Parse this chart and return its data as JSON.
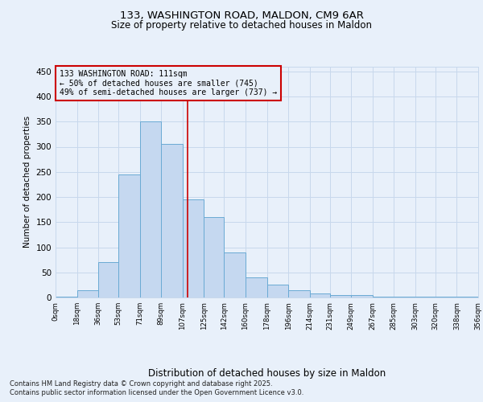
{
  "title1": "133, WASHINGTON ROAD, MALDON, CM9 6AR",
  "title2": "Size of property relative to detached houses in Maldon",
  "xlabel": "Distribution of detached houses by size in Maldon",
  "ylabel": "Number of detached properties",
  "bin_labels": [
    "0sqm",
    "18sqm",
    "36sqm",
    "53sqm",
    "71sqm",
    "89sqm",
    "107sqm",
    "125sqm",
    "142sqm",
    "160sqm",
    "178sqm",
    "196sqm",
    "214sqm",
    "231sqm",
    "249sqm",
    "267sqm",
    "285sqm",
    "303sqm",
    "320sqm",
    "338sqm",
    "356sqm"
  ],
  "bin_edges": [
    0,
    18,
    36,
    53,
    71,
    89,
    107,
    125,
    142,
    160,
    178,
    196,
    214,
    231,
    249,
    267,
    285,
    303,
    320,
    338,
    356
  ],
  "bar_heights": [
    1,
    15,
    70,
    245,
    350,
    305,
    195,
    160,
    90,
    40,
    25,
    15,
    8,
    5,
    5,
    2,
    2,
    1,
    1,
    1
  ],
  "bar_color": "#c5d8f0",
  "bar_edge_color": "#6aaad4",
  "grid_color": "#c8d8ec",
  "background_color": "#e8f0fa",
  "vline_x": 111,
  "vline_color": "#cc0000",
  "annotation_text": "133 WASHINGTON ROAD: 111sqm\n← 50% of detached houses are smaller (745)\n49% of semi-detached houses are larger (737) →",
  "annotation_box_edge": "#cc0000",
  "ylim": [
    0,
    460
  ],
  "yticks": [
    0,
    50,
    100,
    150,
    200,
    250,
    300,
    350,
    400,
    450
  ],
  "footnote1": "Contains HM Land Registry data © Crown copyright and database right 2025.",
  "footnote2": "Contains public sector information licensed under the Open Government Licence v3.0."
}
